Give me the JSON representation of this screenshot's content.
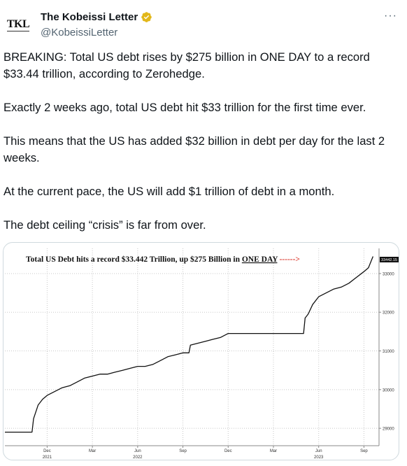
{
  "author": {
    "name": "The Kobeissi Letter",
    "handle": "@KobeissiLetter",
    "avatar_text": "TKL",
    "verified_color": "#e2b719"
  },
  "menu": {
    "more_label": "···"
  },
  "tweet": {
    "paragraphs": [
      "BREAKING: Total US debt rises by $275 billion in ONE DAY to a record $33.44 trillion, according to Zerohedge.",
      "Exactly 2 weeks ago, total US debt hit $33 trillion for the first time ever.",
      "This means that the US has added $32 billion in debt per day for the last 2 weeks.",
      "At the current pace, the US will add $1 trillion of debt in a month.",
      "The debt ceiling “crisis” is far from over."
    ]
  },
  "chart_data": {
    "type": "line",
    "title_prefix": "Total US Debt hits a record $33.442 Trillion, up $275 Billion in ",
    "title_emphasis": "ONE DAY",
    "title_arrow": "------>",
    "last_value_label": "33442.15",
    "y_ticks": [
      "29000",
      "30000",
      "31000",
      "32000",
      "33000"
    ],
    "ylim": [
      28550,
      33650
    ],
    "x_ticks": [
      "Dec",
      "Mar",
      "Jun",
      "Sep",
      "Dec",
      "Mar",
      "Jun",
      "Sep"
    ],
    "x_tick_positions": [
      1.0,
      4.0,
      7.0,
      10.0,
      13.0,
      16.0,
      19.0,
      22.0
    ],
    "year_labels": [
      "2021",
      "2022",
      "2023"
    ],
    "year_positions": [
      1.0,
      7.0,
      19.0
    ],
    "xlim": [
      -1.8,
      23.0
    ],
    "x_unit": "months since Dec 2021",
    "line_color": "#111111",
    "arrow_color": "#d93025",
    "grid": true,
    "series": [
      {
        "x": [
          -1.8,
          0.0,
          0.1,
          0.4,
          0.7,
          1.0,
          1.5,
          2.0,
          2.5,
          3.0,
          3.5,
          4.0,
          4.5,
          5.0,
          5.5,
          6.0,
          6.5,
          7.0,
          7.5,
          8.0,
          8.5,
          9.0,
          9.5,
          10.0,
          10.4,
          10.5,
          11.0,
          11.5,
          12.0,
          12.5,
          13.0,
          14.0,
          15.0,
          16.0,
          17.0,
          18.0,
          18.1,
          18.3,
          18.6,
          19.0,
          19.5,
          20.0,
          20.5,
          21.0,
          21.5,
          22.0,
          22.3,
          22.6
        ],
        "y": [
          28900,
          28900,
          29250,
          29600,
          29750,
          29850,
          29950,
          30050,
          30100,
          30200,
          30300,
          30350,
          30400,
          30400,
          30450,
          30500,
          30550,
          30600,
          30600,
          30650,
          30750,
          30850,
          30900,
          30950,
          30950,
          31150,
          31200,
          31250,
          31300,
          31350,
          31450,
          31450,
          31450,
          31450,
          31450,
          31450,
          31850,
          31950,
          32200,
          32400,
          32500,
          32600,
          32650,
          32750,
          32900,
          33050,
          33150,
          33442
        ]
      }
    ]
  }
}
